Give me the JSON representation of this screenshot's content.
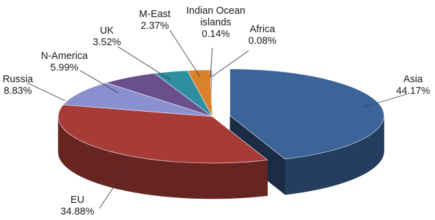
{
  "chart_data": {
    "type": "pie",
    "title": "",
    "legend": "none",
    "style": "3d-exploded-first-slice",
    "slices": [
      {
        "label": "Asia",
        "value": 44.17,
        "value_text": "44.17%",
        "color": "#3c6499"
      },
      {
        "label": "EU",
        "value": 34.88,
        "value_text": "34.88%",
        "color": "#a63b37"
      },
      {
        "label": "Russia",
        "value": 8.83,
        "value_text": "8.83%",
        "color": "#8a8fd0"
      },
      {
        "label": "N-America",
        "value": 5.99,
        "value_text": "5.99%",
        "color": "#6a4f8c"
      },
      {
        "label": "UK",
        "value": 3.52,
        "value_text": "3.52%",
        "color": "#2f8fa0"
      },
      {
        "label": "M-East",
        "value": 2.37,
        "value_text": "2.37%",
        "color": "#d9822b"
      },
      {
        "label": "Indian Ocean islands",
        "value": 0.14,
        "value_text": "0.14%",
        "color": "#4a6fb0"
      },
      {
        "label": "Africa",
        "value": 0.08,
        "value_text": "0.08%",
        "color": "#b34a45"
      }
    ]
  }
}
